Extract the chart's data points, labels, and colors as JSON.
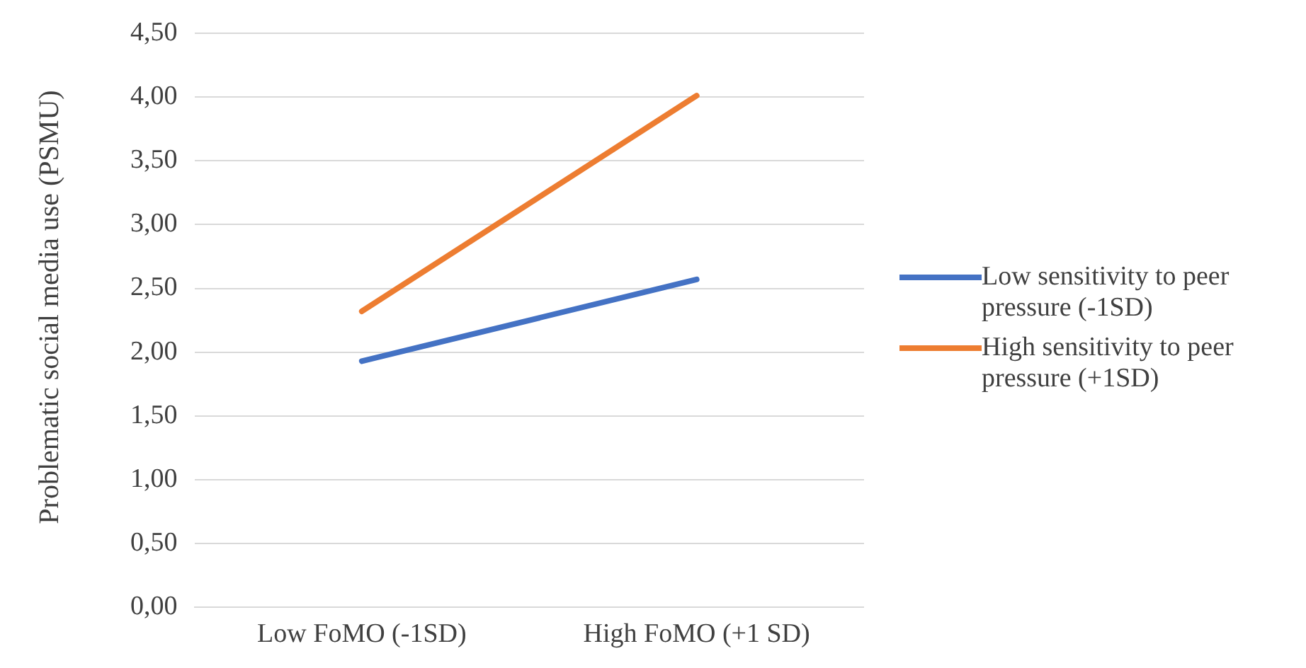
{
  "chart_data": {
    "type": "line",
    "ylabel": "Problematic social media use (PSMU)",
    "categories": [
      "Low FoMO (-1SD)",
      "High FoMO (+1 SD)"
    ],
    "series": [
      {
        "name": "Low sensitivity to peer pressure (-1SD)",
        "color": "#4472c4",
        "values": [
          1.93,
          2.57
        ]
      },
      {
        "name": "High sensitivity to peer pressure (+1SD)",
        "color": "#ed7d31",
        "values": [
          2.32,
          4.01
        ]
      }
    ],
    "ylim": [
      0,
      4.5
    ],
    "yticks": [
      {
        "value": 0,
        "label": "0,00"
      },
      {
        "value": 0.5,
        "label": "0,50"
      },
      {
        "value": 1,
        "label": "1,00"
      },
      {
        "value": 1.5,
        "label": "1,50"
      },
      {
        "value": 2,
        "label": "2,00"
      },
      {
        "value": 2.5,
        "label": "2,50"
      },
      {
        "value": 3,
        "label": "3,00"
      },
      {
        "value": 3.5,
        "label": "3,50"
      },
      {
        "value": 4,
        "label": "4,00"
      },
      {
        "value": 4.5,
        "label": "4,50"
      }
    ],
    "grid": "y",
    "legend": "right",
    "marker": "none",
    "line_style": "solid"
  }
}
